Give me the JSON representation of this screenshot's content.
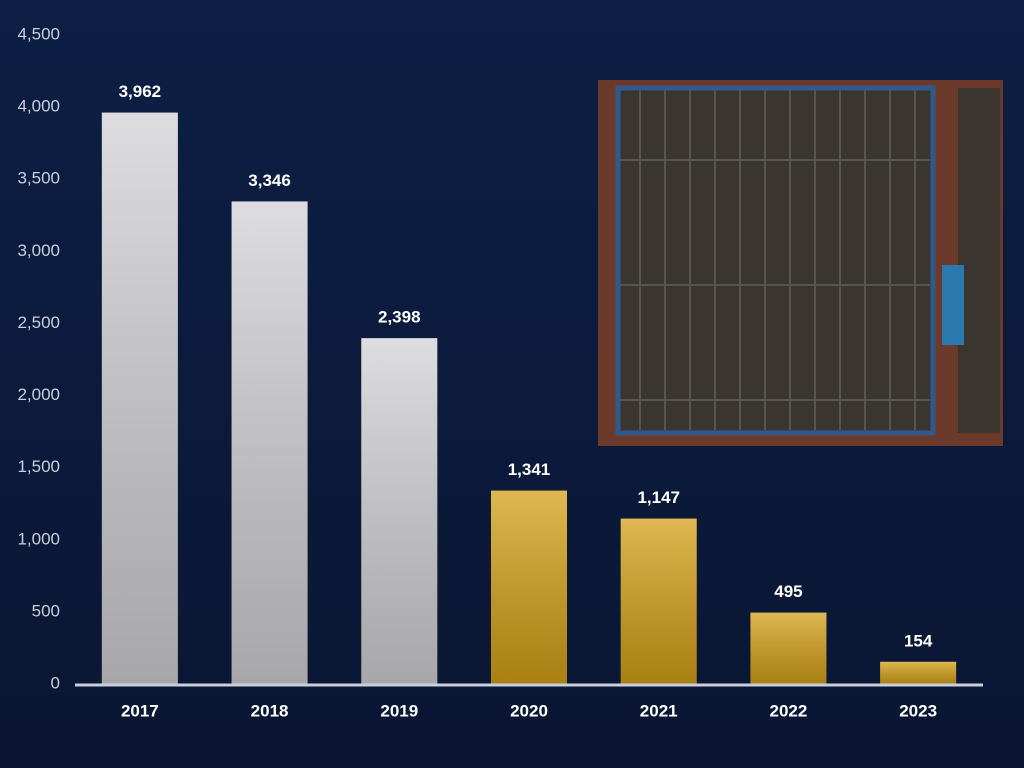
{
  "chart_data": {
    "type": "bar",
    "categories": [
      "2017",
      "2018",
      "2019",
      "2020",
      "2021",
      "2022",
      "2023"
    ],
    "values": [
      3962,
      3346,
      2398,
      1341,
      1147,
      495,
      154
    ],
    "value_labels": [
      "3,962",
      "3,346",
      "2,398",
      "1,341",
      "1,147",
      "495",
      "154"
    ],
    "colors": [
      "#d2d2d6",
      "#d2d2d6",
      "#d2d2d6",
      "#d4a017",
      "#d4a017",
      "#d4a017",
      "#d4a017"
    ],
    "ylim": [
      0,
      4500
    ],
    "yticks": [
      0,
      500,
      {
        "value": 1000,
        "label": "1,000"
      },
      {
        "value": 1500,
        "label": "1,500"
      },
      {
        "value": 2000,
        "label": "2,000"
      },
      {
        "value": 2500,
        "label": "2,500"
      },
      {
        "value": 3000,
        "label": "3,000"
      },
      {
        "value": 3500,
        "label": "3,500"
      },
      {
        "value": 4000,
        "label": "4,000"
      },
      {
        "value": 4500,
        "label": "4,500"
      }
    ],
    "grid": false
  }
}
